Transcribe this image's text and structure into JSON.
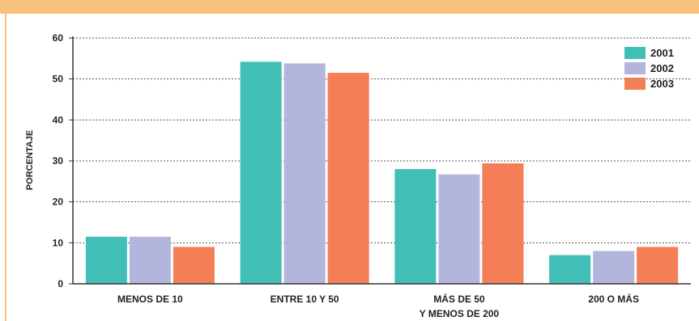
{
  "chart_data": {
    "type": "bar",
    "ylabel": "PORCENTAJE",
    "ylim": [
      0,
      60
    ],
    "yticks": [
      0,
      10,
      20,
      30,
      40,
      50,
      60
    ],
    "grid": true,
    "legend_position": "top-right",
    "categories": [
      [
        "MENOS DE 10"
      ],
      [
        "ENTRE 10 Y 50"
      ],
      [
        "MÁS DE 50",
        "Y MENOS DE 200"
      ],
      [
        "200 O MÁS"
      ]
    ],
    "series": [
      {
        "name": "2001",
        "color": "#41bfb7",
        "values": [
          11.5,
          54.2,
          28.0,
          7.0
        ]
      },
      {
        "name": "2002",
        "color": "#b3b5dd",
        "values": [
          11.5,
          53.8,
          26.7,
          8.0
        ]
      },
      {
        "name": "2003",
        "color": "#f47e55",
        "values": [
          9.0,
          51.5,
          29.4,
          9.0
        ]
      }
    ]
  },
  "colors": {
    "frame_accent": "#f7c27e",
    "grid": "#555555"
  }
}
